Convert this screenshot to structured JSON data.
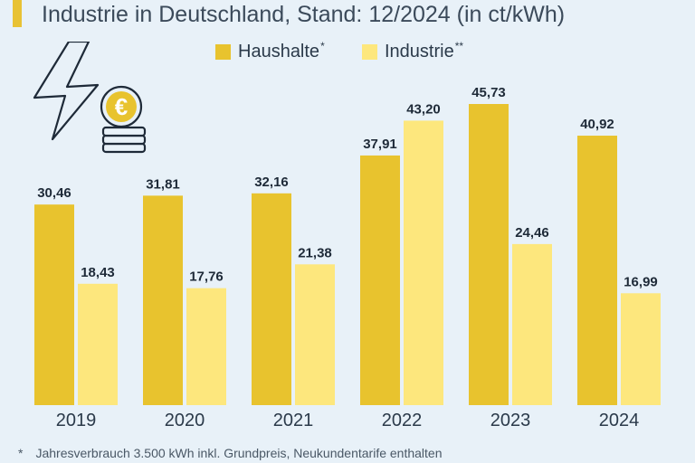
{
  "title": "Industrie in Deutschland, Stand: 12/2024 (in ct/kWh)",
  "legend": [
    {
      "label": "Haushalte",
      "mark": "*",
      "color": "#e8c32e"
    },
    {
      "label": "Industrie",
      "mark": "**",
      "color": "#fde77d"
    }
  ],
  "icons": [
    "lightning-bolt-icon",
    "euro-coin-stack-icon"
  ],
  "chart_data": {
    "type": "bar",
    "categories": [
      "2019",
      "2020",
      "2021",
      "2022",
      "2023",
      "2024"
    ],
    "series": [
      {
        "name": "Haushalte",
        "values": [
          30.46,
          31.81,
          32.16,
          37.91,
          45.73,
          40.92
        ],
        "labels": [
          "30,46",
          "31,81",
          "32,16",
          "37,91",
          "45,73",
          "40,92"
        ],
        "color": "#e8c32e"
      },
      {
        "name": "Industrie",
        "values": [
          18.43,
          17.76,
          21.38,
          43.2,
          24.46,
          16.99
        ],
        "labels": [
          "18,43",
          "17,76",
          "21,38",
          "43,20",
          "24,46",
          "16,99"
        ],
        "color": "#fde77d"
      }
    ],
    "ylim": [
      0,
      48
    ],
    "grid": false
  },
  "footnote": {
    "mark": "*",
    "text": "Jahresverbrauch 3.500 kWh inkl. Grundpreis, Neukundentarife enthalten"
  }
}
